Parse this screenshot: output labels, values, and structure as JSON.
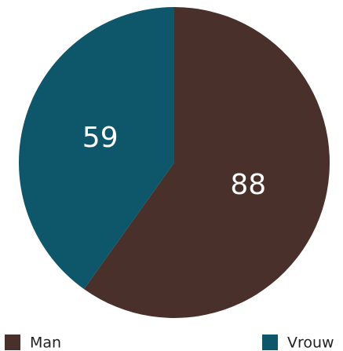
{
  "chart_data": {
    "type": "pie",
    "categories": [
      "Man",
      "Vrouw"
    ],
    "values": [
      88,
      59
    ],
    "colors": [
      "#4a302a",
      "#0e566a"
    ],
    "start_angle": 0,
    "direction": "clockwise",
    "legend": "bottom"
  }
}
